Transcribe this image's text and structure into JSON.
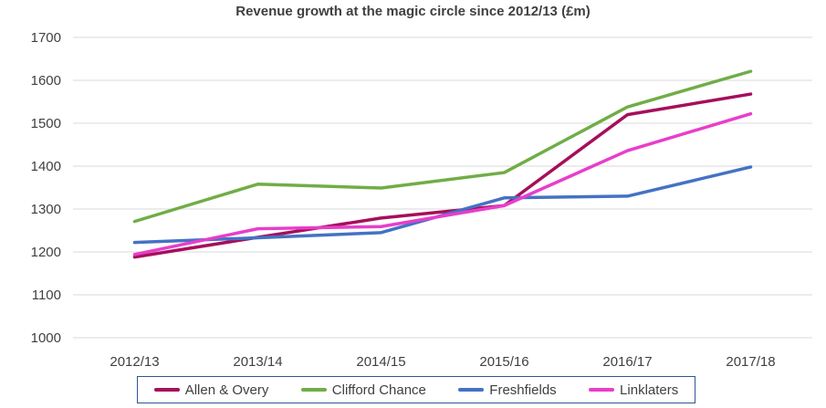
{
  "chart_data": {
    "type": "line",
    "title": "Revenue growth at the magic circle since 2012/13 (£m)",
    "categories": [
      "2012/13",
      "2013/14",
      "2014/15",
      "2015/16",
      "2016/17",
      "2017/18"
    ],
    "yticks": [
      "1000",
      "1100",
      "1200",
      "1300",
      "1400",
      "1500",
      "1600",
      "1700"
    ],
    "ylim": [
      1000,
      1700
    ],
    "grid": true,
    "legend_position": "bottom",
    "series": [
      {
        "name": "Allen & Overy",
        "color": "#a50f5b",
        "values": [
          1188,
          1234,
          1279,
          1308,
          1520,
          1568
        ]
      },
      {
        "name": "Clifford Chance",
        "color": "#70ad47",
        "values": [
          1271,
          1358,
          1349,
          1385,
          1538,
          1621
        ]
      },
      {
        "name": "Freshfields",
        "color": "#4472c4",
        "values": [
          1222,
          1233,
          1245,
          1326,
          1330,
          1398
        ]
      },
      {
        "name": "Linklaters",
        "color": "#e83ecb",
        "values": [
          1194,
          1254,
          1259,
          1308,
          1436,
          1522
        ]
      }
    ]
  }
}
